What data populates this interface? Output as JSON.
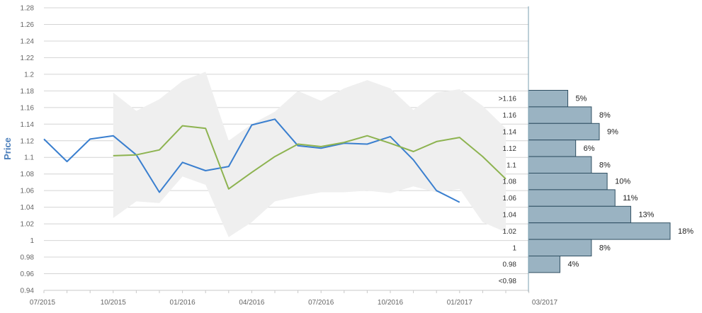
{
  "chart_data": {
    "type": "line",
    "ylabel": "Price",
    "xlabel": "",
    "ylim": [
      0.94,
      1.28
    ],
    "y_ticks": [
      "1.28",
      "1.26",
      "1.24",
      "1.22",
      "1.2",
      "1.18",
      "1.16",
      "1.14",
      "1.12",
      "1.1",
      "1.08",
      "1.06",
      "1.04",
      "1.02",
      "1",
      "0.98",
      "0.96",
      "0.94"
    ],
    "x_ticks": [
      "07/2015",
      "10/2015",
      "01/2016",
      "04/2016",
      "07/2016",
      "10/2016",
      "01/2017",
      "03/2017"
    ],
    "grid": true,
    "series": [
      {
        "color": "#3a7fcf",
        "x": [
          0,
          1,
          2,
          3,
          4,
          5,
          6,
          7,
          8,
          9,
          10,
          11,
          12,
          13,
          14,
          15,
          16,
          17,
          18
        ],
        "values": [
          1.122,
          1.095,
          1.122,
          1.126,
          1.103,
          1.058,
          1.094,
          1.084,
          1.089,
          1.139,
          1.146,
          1.114,
          1.111,
          1.117,
          1.116,
          1.125,
          1.097,
          1.06,
          1.046
        ]
      },
      {
        "color": "#8db350",
        "x": [
          3,
          4,
          5,
          6,
          7,
          8,
          9,
          10,
          11,
          12,
          13,
          14,
          15,
          16,
          17,
          18,
          19,
          20
        ],
        "values": [
          1.102,
          1.103,
          1.109,
          1.138,
          1.135,
          1.062,
          1.082,
          1.101,
          1.116,
          1.113,
          1.118,
          1.126,
          1.117,
          1.107,
          1.119,
          1.124,
          1.101,
          1.074
        ]
      }
    ],
    "band": {
      "color": "#efefef",
      "x": [
        3,
        4,
        5,
        6,
        7,
        8,
        9,
        10,
        11,
        12,
        13,
        14,
        15,
        16,
        17,
        18,
        19,
        20
      ],
      "upper": [
        1.178,
        1.156,
        1.17,
        1.192,
        1.203,
        1.12,
        1.14,
        1.155,
        1.18,
        1.168,
        1.183,
        1.193,
        1.183,
        1.157,
        1.178,
        1.182,
        1.162,
        1.135
      ],
      "lower": [
        1.027,
        1.047,
        1.045,
        1.077,
        1.067,
        1.004,
        1.022,
        1.047,
        1.053,
        1.058,
        1.058,
        1.06,
        1.057,
        1.065,
        1.058,
        1.062,
        1.022,
        1.01
      ]
    },
    "distribution": {
      "color": "#9ab3c2",
      "bins": [
        {
          "label": ">1.16",
          "pct_label": "5%",
          "value": 5
        },
        {
          "label": "1.16",
          "pct_label": "8%",
          "value": 8
        },
        {
          "label": "1.14",
          "pct_label": "9%",
          "value": 9
        },
        {
          "label": "1.12",
          "pct_label": "6%",
          "value": 6
        },
        {
          "label": "1.1",
          "pct_label": "8%",
          "value": 8
        },
        {
          "label": "1.08",
          "pct_label": "10%",
          "value": 10
        },
        {
          "label": "1.06",
          "pct_label": "11%",
          "value": 11
        },
        {
          "label": "1.04",
          "pct_label": "13%",
          "value": 13
        },
        {
          "label": "1.02",
          "pct_label": "18%",
          "value": 18
        },
        {
          "label": "1",
          "pct_label": "8%",
          "value": 8
        },
        {
          "label": "0.98",
          "pct_label": "4%",
          "value": 4
        },
        {
          "label": "<0.98",
          "pct_label": "",
          "value": 0
        }
      ]
    }
  }
}
